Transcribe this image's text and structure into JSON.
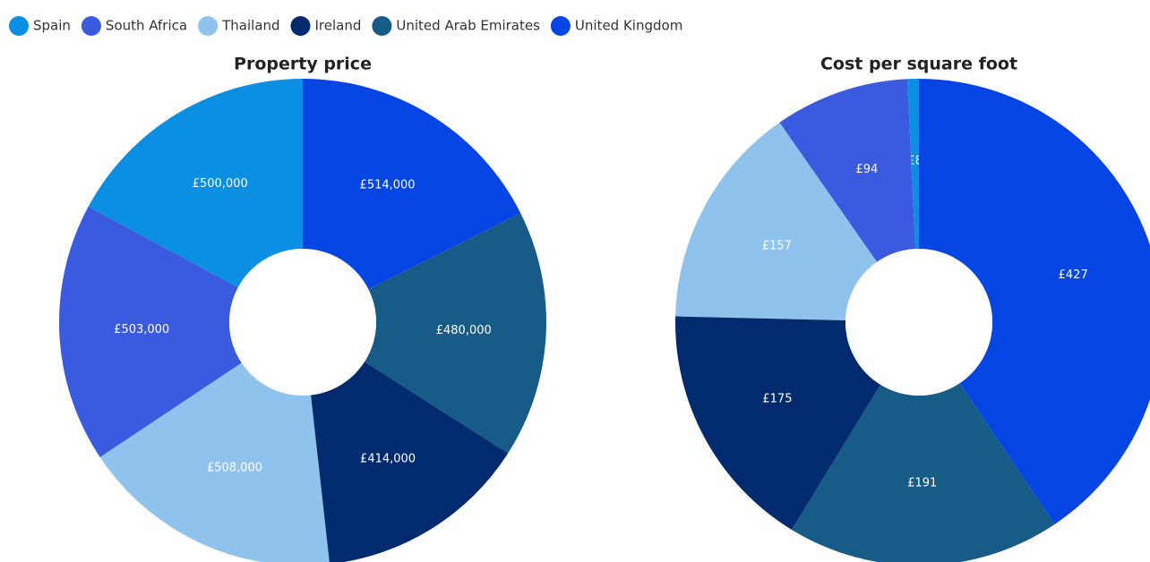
{
  "chart_data": [
    {
      "type": "donut",
      "title": "Property price",
      "categories": [
        "Spain",
        "South Africa",
        "Thailand",
        "Ireland",
        "United Arab Emirates",
        "United Kingdom"
      ],
      "values": [
        500000,
        503000,
        508000,
        414000,
        480000,
        514000
      ],
      "value_labels": [
        "£500,000",
        "£503,000",
        "£508,000",
        "£414,000",
        "£480,000",
        "£514,000"
      ],
      "colors": [
        "#0b8fe3",
        "#3a5be0",
        "#8fc2ec",
        "#022a6e",
        "#175c87",
        "#0545e3"
      ]
    },
    {
      "type": "donut",
      "title": "Cost per square foot",
      "categories": [
        "Spain",
        "South Africa",
        "Thailand",
        "Ireland",
        "United Arab Emirates",
        "United Kingdom"
      ],
      "values": [
        8,
        94,
        157,
        175,
        191,
        427
      ],
      "value_labels": [
        "£8",
        "£94",
        "£157",
        "£175",
        "£191",
        "£427"
      ],
      "colors": [
        "#0b8fe3",
        "#3a5be0",
        "#8fc2ec",
        "#022a6e",
        "#175c87",
        "#0545e3"
      ]
    }
  ]
}
